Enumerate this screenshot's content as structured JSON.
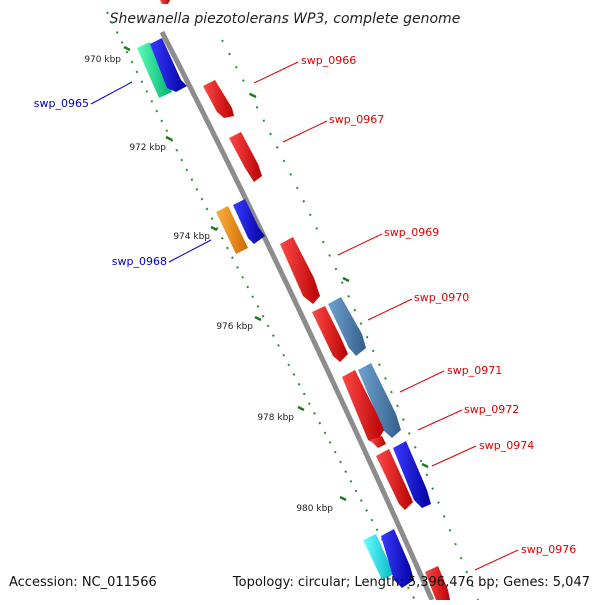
{
  "title": "Shewanella piezotolerans WP3, complete genome",
  "footer": {
    "accession": "Accession: NC_011566",
    "topology": "Topology: circular; Length: 5,396,476 bp; Genes: 5,047"
  },
  "ticks": [
    {
      "label": "970 kbp"
    },
    {
      "label": "972 kbp"
    },
    {
      "label": "974 kbp"
    },
    {
      "label": "976 kbp"
    },
    {
      "label": "978 kbp"
    },
    {
      "label": "980 kbp"
    }
  ],
  "genes": [
    {
      "label": "swp_0965",
      "label_color": "#0000cc"
    },
    {
      "label": "swp_0966",
      "label_color": "#dd0000"
    },
    {
      "label": "swp_0967",
      "label_color": "#dd0000"
    },
    {
      "label": "swp_0968",
      "label_color": "#0000cc"
    },
    {
      "label": "swp_0969",
      "label_color": "#dd0000"
    },
    {
      "label": "swp_0970",
      "label_color": "#dd0000"
    },
    {
      "label": "swp_0971",
      "label_color": "#dd0000"
    },
    {
      "label": "swp_0972",
      "label_color": "#dd0000"
    },
    {
      "label": "swp_0974",
      "label_color": "#dd0000"
    },
    {
      "label": "swp_0976",
      "label_color": "#dd0000"
    }
  ],
  "colors": {
    "backbone": "#8c8c8c",
    "tick_dots": "#2e8b2e",
    "forward_gene": "#ee0000",
    "reverse_gene": "#0000dd",
    "steel_gene": "#4682b4",
    "orange_gene": "#ff8c00",
    "green_gene": "#00e890",
    "cyan_gene": "#00e5ee"
  }
}
